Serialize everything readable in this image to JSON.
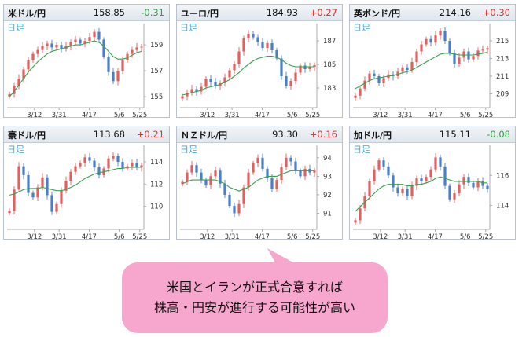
{
  "period_label": "日足",
  "x_ticks": [
    "3/12",
    "3/31",
    "4/17",
    "5/6",
    "5/25"
  ],
  "callout": {
    "line1": "米国とイランが正式合意すれば",
    "line2": "株高・円安が進行する可能性が高い"
  },
  "colors": {
    "up": "#e0302b",
    "down": "#2aa33a",
    "candle_up": "#e06060",
    "candle_down": "#4a7fc7",
    "ma": "#37a04b",
    "callout": "#f7a6cd"
  },
  "chart_data": [
    {
      "type": "line",
      "pair": "米ドル/円",
      "price": "158.85",
      "change": "-0.31",
      "dir": "down",
      "y_ticks": [
        155,
        157,
        159
      ],
      "ylim": [
        154.4,
        160.4
      ],
      "close": [
        155.2,
        155.8,
        156.4,
        157.1,
        157.8,
        158.3,
        158.6,
        158.9,
        159.1,
        158.8,
        159.0,
        158.7,
        158.9,
        159.2,
        159.4,
        159.1,
        159.3,
        159.6,
        160.0,
        159.4,
        158.1,
        156.9,
        156.2,
        157.0,
        157.8,
        158.3,
        158.6,
        158.8,
        158.85
      ],
      "ma": [
        155.0,
        155.4,
        155.9,
        156.4,
        156.9,
        157.3,
        157.7,
        158.0,
        158.3,
        158.5,
        158.6,
        158.7,
        158.8,
        158.9,
        159.0,
        159.0,
        159.1,
        159.2,
        159.3,
        159.2,
        158.9,
        158.5,
        158.1,
        157.9,
        157.9,
        158.0,
        158.2,
        158.4,
        158.5
      ]
    },
    {
      "type": "line",
      "pair": "ユーロ/円",
      "price": "184.93",
      "change": "+0.27",
      "dir": "up",
      "y_ticks": [
        183,
        185,
        187
      ],
      "ylim": [
        181.6,
        188.2
      ],
      "close": [
        182.3,
        182.6,
        182.9,
        182.7,
        183.1,
        183.8,
        183.5,
        183.2,
        183.4,
        183.9,
        184.5,
        185.0,
        186.1,
        187.2,
        187.6,
        187.3,
        186.9,
        186.4,
        186.8,
        186.2,
        185.5,
        184.0,
        183.2,
        183.6,
        184.3,
        184.9,
        184.6,
        184.8,
        184.93
      ],
      "ma": [
        182.4,
        182.5,
        182.6,
        182.7,
        182.8,
        183.0,
        183.1,
        183.2,
        183.3,
        183.5,
        183.7,
        184.0,
        184.3,
        184.7,
        185.0,
        185.3,
        185.5,
        185.6,
        185.7,
        185.7,
        185.6,
        185.4,
        185.1,
        184.9,
        184.8,
        184.8,
        184.8,
        184.8,
        184.8
      ]
    },
    {
      "type": "line",
      "pair": "英ポンド/円",
      "price": "214.16",
      "change": "+0.30",
      "dir": "up",
      "y_ticks": [
        209,
        211,
        213,
        215
      ],
      "ylim": [
        207.8,
        216.6
      ],
      "close": [
        208.8,
        209.6,
        210.5,
        211.3,
        211.0,
        210.2,
        210.8,
        211.2,
        211.0,
        211.5,
        212.0,
        211.7,
        212.6,
        213.8,
        214.6,
        215.2,
        214.8,
        215.6,
        216.1,
        215.0,
        213.6,
        212.4,
        213.1,
        213.8,
        212.9,
        213.3,
        213.9,
        214.0,
        214.16
      ],
      "ma": [
        209.6,
        209.9,
        210.2,
        210.5,
        210.7,
        210.8,
        210.9,
        211.0,
        211.1,
        211.2,
        211.4,
        211.5,
        211.7,
        212.0,
        212.3,
        212.6,
        212.9,
        213.2,
        213.5,
        213.6,
        213.6,
        213.5,
        213.4,
        213.4,
        213.4,
        213.4,
        213.5,
        213.6,
        213.7
      ]
    },
    {
      "type": "line",
      "pair": "豪ドル/円",
      "price": "113.68",
      "change": "+0.21",
      "dir": "up",
      "y_ticks": [
        110,
        112,
        114
      ],
      "ylim": [
        108.2,
        115.2
      ],
      "close": [
        109.6,
        111.5,
        113.6,
        112.8,
        111.2,
        110.8,
        111.7,
        112.6,
        111.0,
        109.5,
        110.2,
        111.4,
        112.3,
        113.1,
        113.6,
        113.9,
        114.4,
        114.1,
        113.5,
        112.8,
        113.4,
        114.3,
        114.5,
        114.0,
        113.4,
        113.6,
        113.9,
        113.5,
        113.68
      ],
      "ma": [
        111.0,
        111.1,
        111.3,
        111.5,
        111.6,
        111.6,
        111.6,
        111.7,
        111.6,
        111.5,
        111.4,
        111.4,
        111.5,
        111.7,
        111.9,
        112.2,
        112.5,
        112.7,
        112.9,
        113.0,
        113.1,
        113.2,
        113.3,
        113.4,
        113.4,
        113.5,
        113.5,
        113.5,
        113.5
      ]
    },
    {
      "type": "line",
      "pair": "ＮＺドル/円",
      "price": "93.30",
      "change": "+0.16",
      "dir": "up",
      "y_ticks": [
        91,
        92,
        93,
        94
      ],
      "ylim": [
        90.3,
        94.5
      ],
      "close": [
        92.7,
        93.2,
        93.6,
        93.2,
        92.8,
        92.5,
        93.0,
        93.3,
        92.6,
        92.0,
        91.4,
        91.0,
        91.5,
        92.4,
        93.2,
        93.7,
        94.0,
        93.4,
        92.9,
        92.3,
        92.8,
        93.5,
        94.0,
        93.8,
        93.3,
        93.0,
        93.4,
        93.2,
        93.3
      ],
      "ma": [
        92.6,
        92.7,
        92.8,
        92.8,
        92.8,
        92.8,
        92.8,
        92.8,
        92.7,
        92.6,
        92.4,
        92.3,
        92.2,
        92.3,
        92.4,
        92.6,
        92.8,
        92.9,
        93.0,
        93.0,
        93.0,
        93.1,
        93.2,
        93.3,
        93.3,
        93.3,
        93.3,
        93.3,
        93.3
      ]
    },
    {
      "type": "line",
      "pair": "加ドル/円",
      "price": "115.11",
      "change": "-0.08",
      "dir": "down",
      "y_ticks": [
        114,
        116
      ],
      "ylim": [
        112.6,
        117.8
      ],
      "close": [
        113.0,
        113.8,
        114.6,
        115.6,
        116.4,
        117.0,
        116.6,
        116.0,
        115.2,
        114.8,
        115.1,
        114.6,
        115.3,
        115.8,
        115.6,
        115.9,
        116.4,
        117.2,
        116.6,
        115.3,
        114.4,
        114.8,
        115.4,
        115.9,
        115.5,
        115.2,
        115.6,
        115.3,
        115.11
      ],
      "ma": [
        113.6,
        113.9,
        114.2,
        114.5,
        114.8,
        115.1,
        115.3,
        115.4,
        115.4,
        115.4,
        115.4,
        115.3,
        115.3,
        115.4,
        115.4,
        115.5,
        115.6,
        115.8,
        115.9,
        115.8,
        115.7,
        115.6,
        115.6,
        115.6,
        115.6,
        115.6,
        115.6,
        115.5,
        115.5
      ]
    }
  ]
}
